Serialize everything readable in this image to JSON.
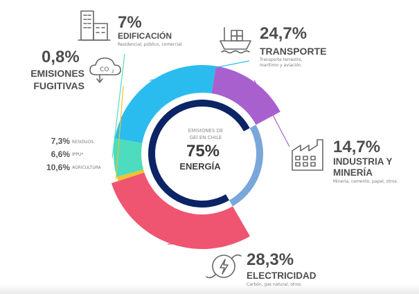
{
  "chart_data": {
    "type": "donut",
    "center": {
      "line1": "EMISIONES DE",
      "line2": "GEI EN CHILE",
      "value": "75%",
      "label": "ENERGÍA"
    },
    "energy_breakdown": [
      {
        "key": "transporte",
        "name": "TRANSPORTE",
        "value_label": "24,7%",
        "value": 24.7,
        "detail": [
          "Transporte terrestre,",
          "marítimo y aviación."
        ],
        "color": "#2bbcef"
      },
      {
        "key": "industria",
        "name": "INDUSTRIA Y MINERÍA",
        "name_lines": [
          "INDUSTRIA Y",
          "MINERÍA"
        ],
        "value_label": "14,7%",
        "value": 14.7,
        "detail": [
          "Minería, cemento, papel, otros."
        ],
        "color": "#a960cf"
      },
      {
        "key": "electricidad",
        "name": "ELECTRICIDAD",
        "value_label": "28,3%",
        "value": 28.3,
        "detail": [
          "Carbón, gas natural, otros."
        ],
        "color": "#ef5570"
      },
      {
        "key": "fugitivas",
        "name": "EMISIONES FUGITIVAS",
        "name_lines": [
          "EMISIONES",
          "FUGITIVAS"
        ],
        "value_label": "0,8%",
        "value": 0.8,
        "detail": [],
        "color": "#f1c232"
      },
      {
        "key": "edificacion",
        "name": "EDIFICACIÓN",
        "value_label": "7%",
        "value": 7.0,
        "detail": [
          "Residencial, público, comercial."
        ],
        "color": "#4ddcbe"
      }
    ],
    "other_sectors": {
      "color": "#7aa7da",
      "items": [
        {
          "value_label": "7,3%",
          "value": 7.3,
          "label": "RESIDUOS"
        },
        {
          "value_label": "6,6%",
          "value": 6.6,
          "label": "IPPU*"
        },
        {
          "value_label": "10,6%",
          "value": 10.6,
          "label": "AGRICULTURA"
        }
      ]
    },
    "inner_ring_color": "#0c2466"
  },
  "icons": {
    "transporte": "ship-icon",
    "industria": "factory-icon",
    "electricidad": "power-plug-icon",
    "fugitivas": "co2-cloud-icon",
    "edificacion": "buildings-icon"
  }
}
